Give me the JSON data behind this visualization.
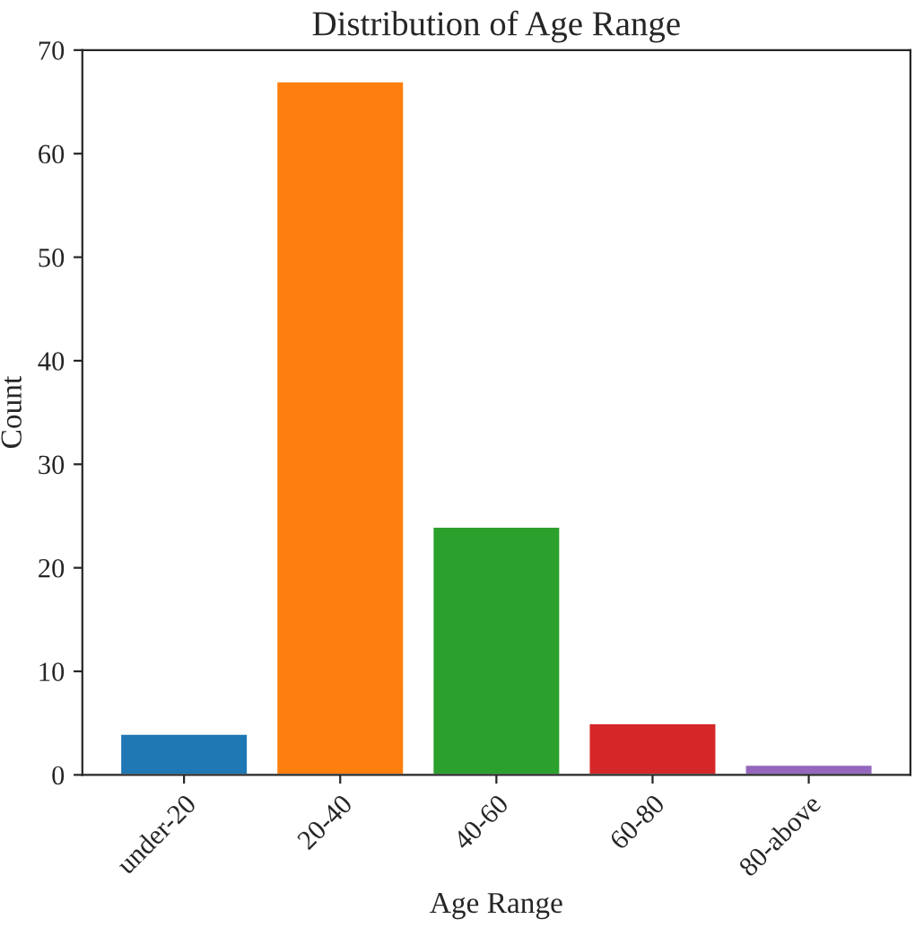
{
  "chart_data": {
    "type": "bar",
    "title": "Distribution of Age Range",
    "xlabel": "Age Range",
    "ylabel": "Count",
    "categories": [
      "under-20",
      "20-40",
      "40-60",
      "60-80",
      "80-above"
    ],
    "values": [
      4,
      67,
      24,
      5,
      1
    ],
    "colors": [
      "#1f77b4",
      "#ff7f0e",
      "#2ca02c",
      "#d62728",
      "#9467bd"
    ],
    "ylim": [
      0,
      70
    ],
    "yticks": [
      0,
      10,
      20,
      30,
      40,
      50,
      60,
      70
    ],
    "grid": false
  }
}
